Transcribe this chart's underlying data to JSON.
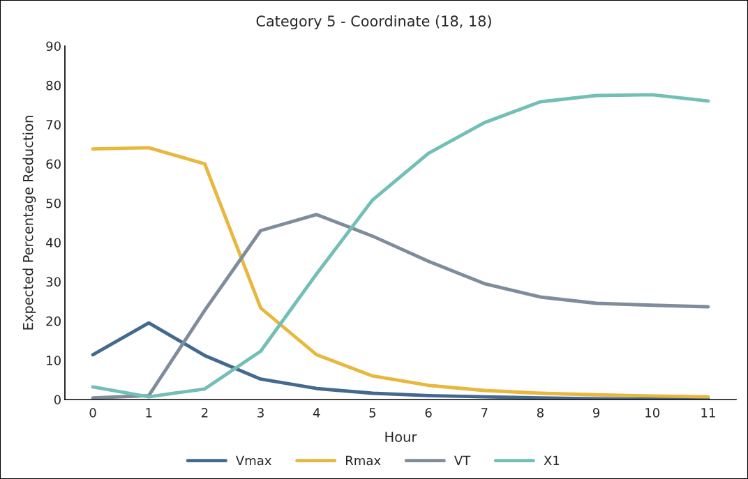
{
  "chart_data": {
    "type": "line",
    "title": "Category 5 - Coordinate (18, 18)",
    "xlabel": "Hour",
    "ylabel": "Expected Percentage Reduction",
    "categories": [
      "0",
      "1",
      "2",
      "3",
      "4",
      "5",
      "6",
      "7",
      "8",
      "9",
      "10",
      "11"
    ],
    "series": [
      {
        "name": "Vmax",
        "color": "#44698f",
        "values": [
          11.4,
          19.5,
          11.2,
          5.2,
          2.8,
          1.6,
          1.0,
          0.7,
          0.4,
          0.2,
          0.1,
          0.1
        ]
      },
      {
        "name": "Rmax",
        "color": "#e8b73e",
        "values": [
          63.8,
          64.1,
          60.0,
          23.3,
          11.4,
          6.0,
          3.6,
          2.3,
          1.6,
          1.2,
          0.9,
          0.7
        ]
      },
      {
        "name": "VT",
        "color": "#7f8c9b",
        "values": [
          0.4,
          1.0,
          22.7,
          43.0,
          47.1,
          41.6,
          35.2,
          29.5,
          26.1,
          24.5,
          24.0,
          23.6
        ]
      },
      {
        "name": "X1",
        "color": "#73bfb8",
        "values": [
          3.2,
          0.7,
          2.7,
          12.3,
          32.0,
          50.8,
          62.7,
          70.5,
          75.8,
          77.4,
          77.6,
          76.0
        ]
      }
    ],
    "ylim": [
      0,
      90
    ],
    "yticks": [
      0,
      10,
      20,
      30,
      40,
      50,
      60,
      70,
      80,
      90
    ],
    "grid": false,
    "legend": "bottom",
    "marker": "none",
    "line_style": "solid"
  }
}
